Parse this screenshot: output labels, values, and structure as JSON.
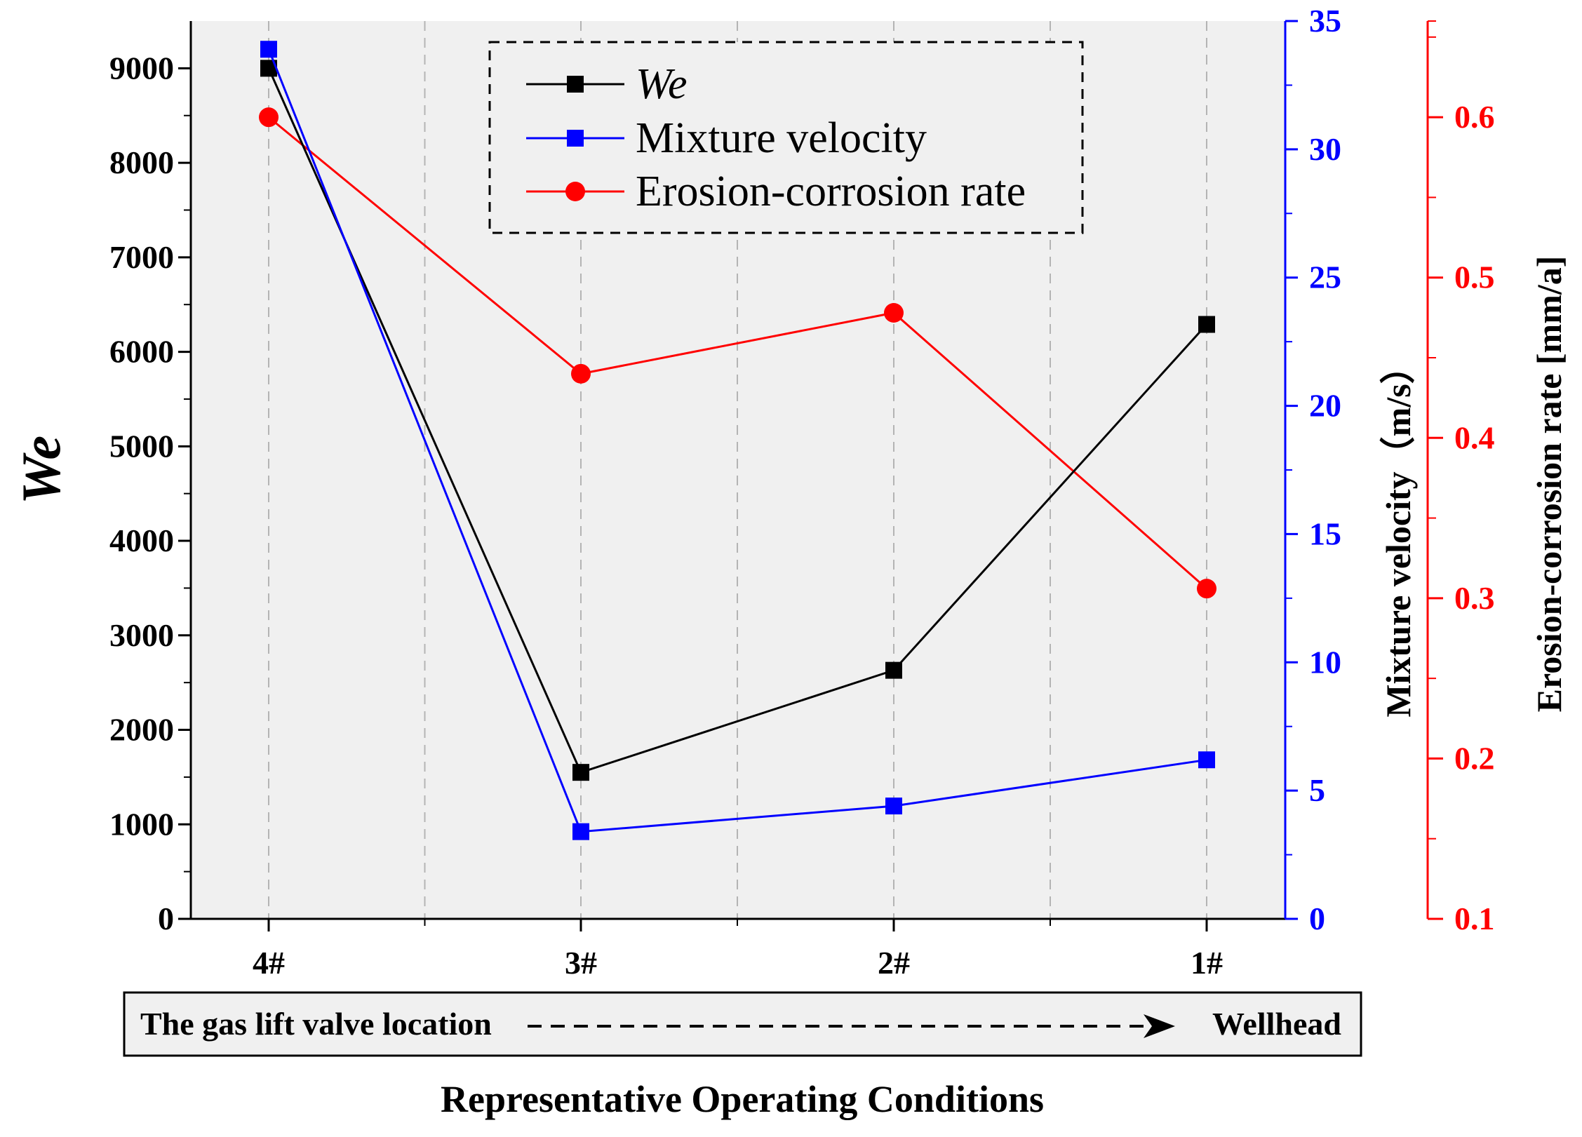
{
  "chart_data": {
    "type": "line",
    "categories": [
      "4#",
      "3#",
      "2#",
      "1#"
    ],
    "series": [
      {
        "name": "We",
        "axis": "left",
        "marker": "square",
        "color": "#000000",
        "values": [
          9000,
          1550,
          2630,
          6290
        ]
      },
      {
        "name": "Mixture velocity",
        "axis": "right1",
        "marker": "square",
        "color": "#0000ff",
        "values": [
          33.9,
          3.4,
          4.4,
          6.2
        ]
      },
      {
        "name": "Erosion-corrosion rate",
        "axis": "right2",
        "marker": "circle",
        "color": "#ff0000",
        "values": [
          0.6,
          0.44,
          0.478,
          0.306
        ]
      }
    ],
    "xlabel": "Representative Operating Conditions",
    "ylabel": "We",
    "y2label": "Mixture velocity（m/s）",
    "y3label": "Erosion-corrosion rate [mm/a]",
    "ylim": [
      0,
      9500
    ],
    "y2lim": [
      0,
      35
    ],
    "y3lim": [
      0.1,
      0.66
    ],
    "yticks": [
      "0",
      "1000",
      "2000",
      "3000",
      "4000",
      "5000",
      "6000",
      "7000",
      "8000",
      "9000"
    ],
    "y2ticks": [
      "0",
      "5",
      "10",
      "15",
      "20",
      "25",
      "30",
      "35"
    ],
    "y3ticks": [
      "0.1",
      "0.2",
      "0.3",
      "0.4",
      "0.5",
      "0.6"
    ],
    "legend": {
      "position": "top-center",
      "entries": [
        "We",
        "Mixture velocity",
        "Erosion-corrosion rate"
      ]
    },
    "grid": "vertical-dashed",
    "location_bar": {
      "start": "The gas lift valve location",
      "end": "Wellhead"
    }
  },
  "colors": {
    "plot_bg": "#f0f0f0",
    "left_axis": "#000000",
    "velocity_axis": "#0000ff",
    "erosion_axis": "#ff0000"
  }
}
